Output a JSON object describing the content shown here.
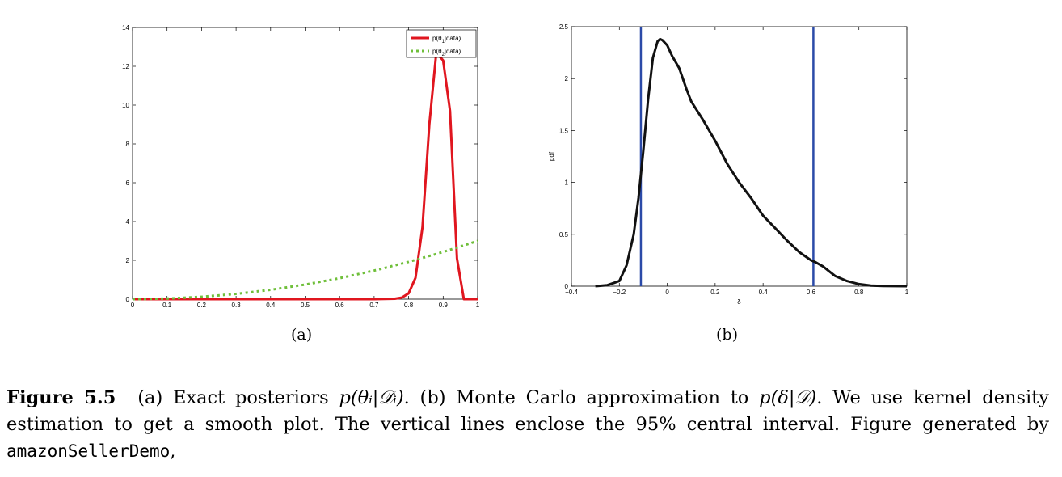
{
  "chart_data": [
    {
      "type": "line",
      "label": "(a)",
      "xlim": [
        0,
        1
      ],
      "ylim": [
        0,
        14
      ],
      "xticks": [
        "0",
        "0.1",
        "0.2",
        "0.3",
        "0.4",
        "0.5",
        "0.6",
        "0.7",
        "0.8",
        "0.9",
        "1"
      ],
      "yticks": [
        "0",
        "2",
        "4",
        "6",
        "8",
        "10",
        "12",
        "14"
      ],
      "legend": {
        "placement": "top-right",
        "entries": [
          {
            "pre": "p(θ",
            "sub": "1",
            "post": "|data)"
          },
          {
            "pre": "p(θ",
            "sub": "2",
            "post": "|data)"
          }
        ]
      },
      "series": [
        {
          "name": "p(θ1|data)",
          "color": "#e0161f",
          "style": "solid",
          "x": [
            0,
            0.7,
            0.76,
            0.78,
            0.8,
            0.82,
            0.84,
            0.86,
            0.88,
            0.9,
            0.92,
            0.94,
            0.96,
            0.98,
            1
          ],
          "y": [
            0,
            0,
            0.02,
            0.08,
            0.3,
            1.1,
            3.7,
            9.0,
            12.7,
            12.3,
            9.7,
            2.1,
            0,
            0,
            0
          ]
        },
        {
          "name": "p(θ2|data)",
          "color": "#6fbf3a",
          "style": "dotted",
          "x": [
            0,
            0.1,
            0.2,
            0.3,
            0.4,
            0.5,
            0.6,
            0.7,
            0.8,
            0.9,
            1
          ],
          "y": [
            0,
            0.03,
            0.12,
            0.27,
            0.48,
            0.75,
            1.08,
            1.47,
            1.92,
            2.43,
            3.0
          ]
        }
      ]
    },
    {
      "type": "line",
      "label": "(b)",
      "xlim": [
        -0.4,
        1
      ],
      "ylim": [
        0,
        2.5
      ],
      "xlabel": "δ",
      "ylabel": "pdf",
      "xticks": [
        "−0.4",
        "−0.2",
        "0",
        "0.2",
        "0.4",
        "0.6",
        "0.8",
        "1"
      ],
      "yticks": [
        "0",
        "0.5",
        "1",
        "1.5",
        "2",
        "2.5"
      ],
      "series": [
        {
          "name": "kernel density",
          "color": "#111111",
          "style": "solid",
          "x": [
            -0.3,
            -0.25,
            -0.2,
            -0.17,
            -0.14,
            -0.12,
            -0.1,
            -0.08,
            -0.06,
            -0.04,
            -0.03,
            -0.02,
            0,
            0.02,
            0.05,
            0.08,
            0.1,
            0.15,
            0.2,
            0.25,
            0.3,
            0.35,
            0.4,
            0.45,
            0.5,
            0.55,
            0.6,
            0.62,
            0.65,
            0.7,
            0.75,
            0.8,
            0.85,
            0.9,
            0.95,
            1.0
          ],
          "y": [
            0,
            0.01,
            0.05,
            0.2,
            0.5,
            0.85,
            1.3,
            1.8,
            2.2,
            2.36,
            2.38,
            2.37,
            2.32,
            2.22,
            2.1,
            1.9,
            1.78,
            1.6,
            1.4,
            1.18,
            1.0,
            0.85,
            0.68,
            0.56,
            0.44,
            0.33,
            0.25,
            0.23,
            0.19,
            0.1,
            0.05,
            0.02,
            0.006,
            0.002,
            0.001,
            0
          ]
        }
      ],
      "vlines": {
        "color": "#2b4aa8",
        "x": [
          -0.11,
          0.61
        ]
      }
    }
  ],
  "figure": {
    "label_a": "(a)",
    "label_b": "(b)"
  },
  "caption": {
    "number": "Figure 5.5",
    "part1": "(a) Exact posteriors ",
    "math1": "p(θᵢ|𝒟ᵢ)",
    "part2": ". (b) Monte Carlo approximation to ",
    "math2": "p(δ|𝒟)",
    "part3": ". We use kernel density estimation to get a smooth plot. The vertical lines enclose the 95% central interval. Figure generated by ",
    "code": "amazonSellerDemo",
    "part4": ","
  }
}
